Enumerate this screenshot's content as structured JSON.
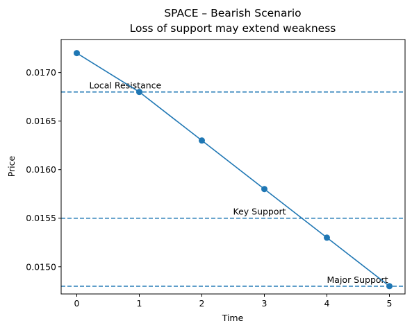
{
  "chart_data": {
    "type": "line",
    "title": "SPACE – Bearish Scenario",
    "subtitle": "Loss of support may extend weakness",
    "xlabel": "Time",
    "ylabel": "Price",
    "x": [
      0,
      1,
      2,
      3,
      4,
      5
    ],
    "series": [
      {
        "values": [
          0.0172,
          0.0168,
          0.0163,
          0.0158,
          0.0153,
          0.0148
        ],
        "color": "#1f77b4",
        "marker": "circle"
      }
    ],
    "reference_lines": [
      {
        "value": 0.0168,
        "label": "Local Resistance",
        "label_x": 0.2,
        "style": "dashed",
        "color": "#1f77b4"
      },
      {
        "value": 0.0155,
        "label": "Key Support",
        "label_x": 2.5,
        "style": "dashed",
        "color": "#1f77b4"
      },
      {
        "value": 0.0148,
        "label": "Major Support",
        "label_x": 4.0,
        "style": "dashed",
        "color": "#1f77b4"
      }
    ],
    "xlim": [
      -0.25,
      5.25
    ],
    "ylim": [
      0.01472,
      0.01734
    ],
    "xticks": [
      0,
      1,
      2,
      3,
      4,
      5
    ],
    "xtick_labels": [
      "0",
      "1",
      "2",
      "3",
      "4",
      "5"
    ],
    "yticks": [
      0.015,
      0.0155,
      0.016,
      0.0165,
      0.017
    ],
    "ytick_labels": [
      "0.0150",
      "0.0155",
      "0.0160",
      "0.0165",
      "0.0170"
    ],
    "grid": false,
    "legend": "none"
  }
}
